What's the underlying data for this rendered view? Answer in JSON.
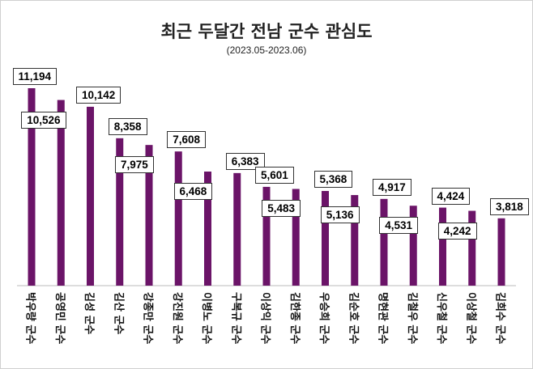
{
  "chart_data": {
    "type": "bar",
    "title": "최근 두달간 전남 군수 관심도",
    "subtitle": "(2023.05-2023.06)",
    "categories": [
      "박우량 군수",
      "공영민 군수",
      "김성 군수",
      "김산 군수",
      "강종만 군수",
      "강진원 군수",
      "이병노 군수",
      "구복규 군수",
      "이상익 군수",
      "김한종 군수",
      "우승희 군수",
      "김순호 군수",
      "명현관 군수",
      "김철우 군수",
      "신우철 군수",
      "이상철 군수",
      "김희수 군수"
    ],
    "values": [
      11194,
      10526,
      10142,
      8358,
      7975,
      7608,
      6468,
      6383,
      5601,
      5483,
      5368,
      5136,
      4917,
      4531,
      4424,
      4242,
      3818
    ],
    "value_labels": [
      "11,194",
      "10,526",
      "10,142",
      "8,358",
      "7,975",
      "7,608",
      "6,468",
      "6,383",
      "5,601",
      "5,483",
      "5,368",
      "5,136",
      "4,917",
      "4,531",
      "4,424",
      "4,242",
      "3,818"
    ],
    "ylim": [
      0,
      11194
    ],
    "grid": false,
    "bar_color": "#6B1468"
  }
}
